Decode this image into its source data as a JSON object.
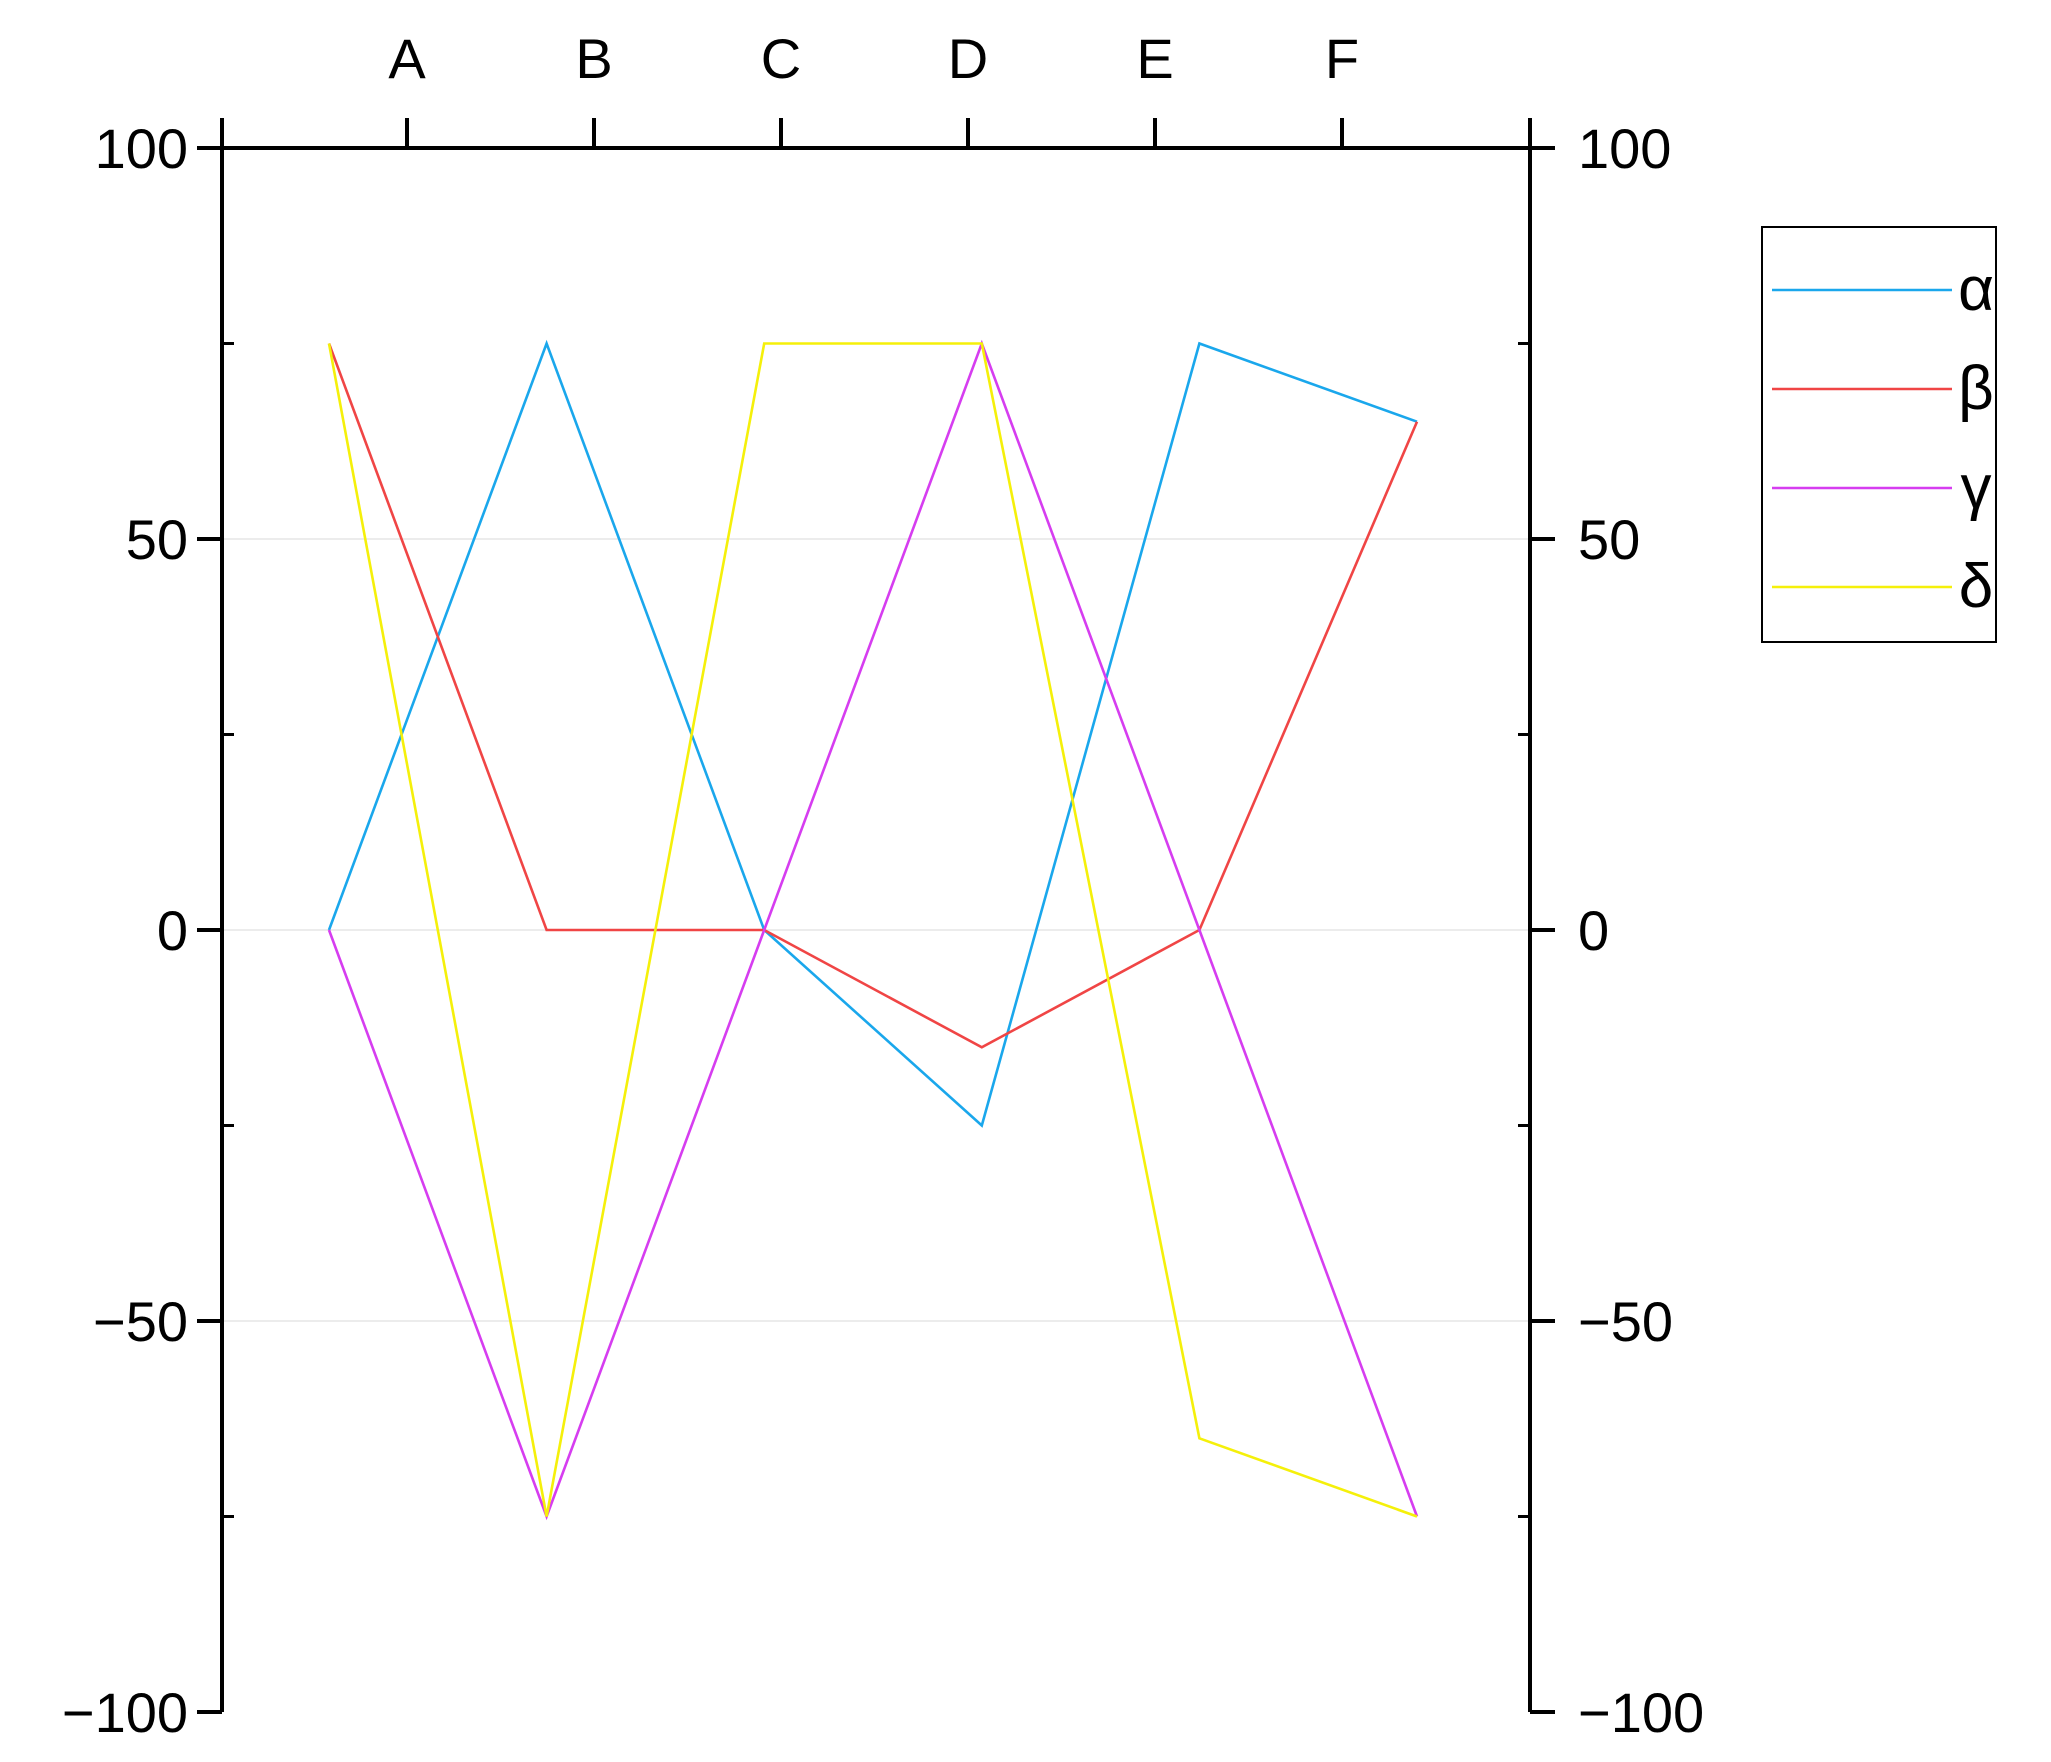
{
  "chart_data": {
    "type": "line",
    "title": "",
    "xlabel": "",
    "ylabel": "",
    "top_categories": [
      "A",
      "B",
      "C",
      "D",
      "E",
      "F"
    ],
    "ylim": [
      -100,
      100
    ],
    "y_ticks": [
      100,
      50,
      0,
      -50,
      -100
    ],
    "y_tick_labels": [
      "100",
      "50",
      "0",
      "−50",
      "−100"
    ],
    "grid": true,
    "legend_position": "right",
    "series": [
      {
        "name": "α",
        "color": "#1aa7ec",
        "values": [
          0,
          75,
          0,
          -25,
          75,
          65
        ]
      },
      {
        "name": "β",
        "color": "#f04545",
        "values": [
          75,
          0,
          0,
          -15,
          0,
          65
        ]
      },
      {
        "name": "γ",
        "color": "#d63df0",
        "values": [
          0,
          -75,
          0,
          75,
          0,
          -75
        ]
      },
      {
        "name": "δ",
        "color": "#f5f00a",
        "values": [
          75,
          -75,
          75,
          75,
          -65,
          -75
        ]
      }
    ]
  }
}
